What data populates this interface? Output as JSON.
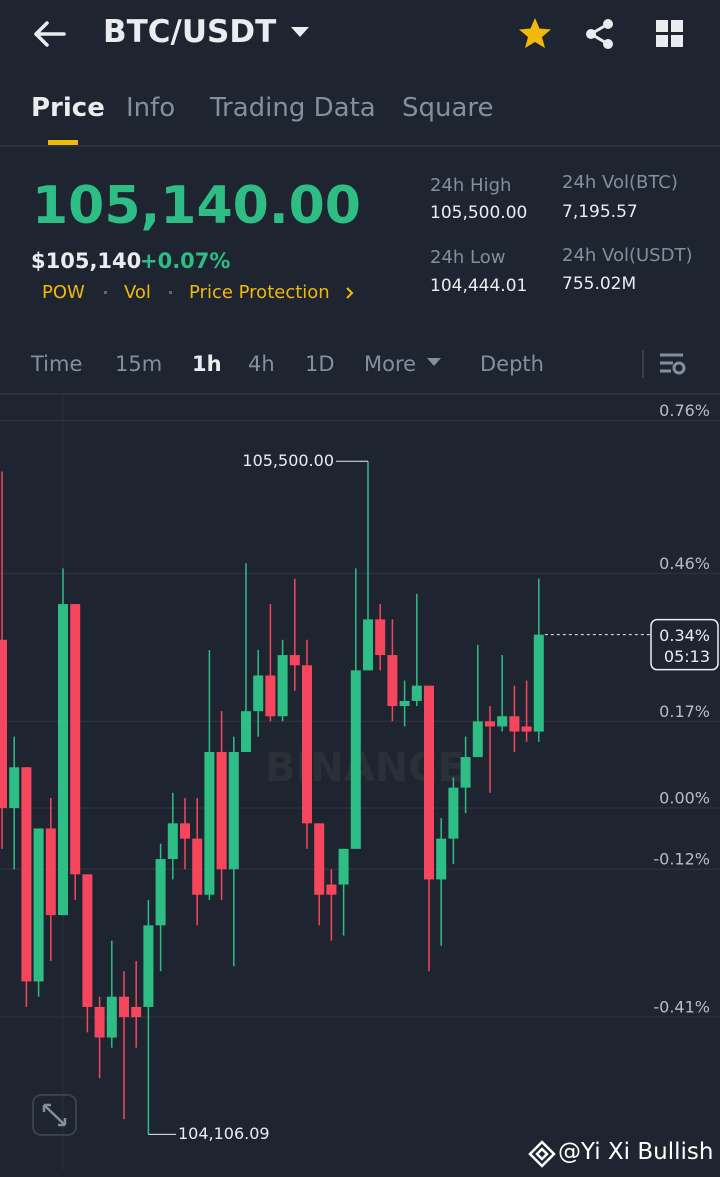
{
  "header": {
    "title": "BTC/USDT"
  },
  "tabs": [
    "Price",
    "Info",
    "Trading Data",
    "Square"
  ],
  "price": {
    "last": "105,140.00",
    "usd": "$105,140",
    "change": "+0.07%",
    "tags": [
      "POW",
      "Vol",
      "Price Protection"
    ]
  },
  "stats": [
    {
      "label": "24h High",
      "value": "105,500.00"
    },
    {
      "label": "24h Low",
      "value": "104,444.01"
    },
    {
      "label": "24h Vol(BTC)",
      "value": "7,195.57"
    },
    {
      "label": "24h Vol(USDT)",
      "value": "755.02M"
    }
  ],
  "intervals": [
    "Time",
    "15m",
    "1h",
    "4h",
    "1D",
    "More",
    "Depth"
  ],
  "watermark": "@Yi Xi Bullish",
  "logo": "BINANCE",
  "chart_data": {
    "type": "candlestick",
    "up_color": "#2ebd85",
    "down_color": "#f6465d",
    "ylim": [
      -0.7,
      0.81
    ],
    "yticks": [
      {
        "value": 0.76,
        "label": "0.76%"
      },
      {
        "value": 0.46,
        "label": "0.46%"
      },
      {
        "value": 0.17,
        "label": "0.17%"
      },
      {
        "value": 0,
        "label": "0.00%"
      },
      {
        "value": -0.12,
        "label": "-0.12%"
      },
      {
        "value": -0.41,
        "label": "-0.41%"
      }
    ],
    "grid": true,
    "open": [
      0.33,
      0,
      0.08,
      -0.34,
      -0.04,
      -0.21,
      0.4,
      -0.13,
      -0.39,
      -0.45,
      -0.37,
      -0.39,
      -0.39,
      -0.23,
      -0.1,
      -0.03,
      -0.06,
      -0.17,
      0.11,
      -0.12,
      0.11,
      0.19,
      0.26,
      0.18,
      0.3,
      0.28,
      -0.03,
      -0.15,
      -0.15,
      -0.08,
      0.27,
      0.37,
      0.3,
      0.2,
      0.21,
      0.24,
      -0.14,
      -0.06,
      0.04,
      0.1,
      0.17,
      0.16,
      0.18,
      0.16,
      0.15
    ],
    "high": [
      0.66,
      0.14,
      0.08,
      -0.04,
      0.02,
      0.47,
      0.4,
      -0.13,
      -0.37,
      -0.26,
      -0.32,
      -0.3,
      -0.18,
      -0.07,
      0.03,
      0.02,
      0.02,
      0.31,
      0.19,
      0.14,
      0.48,
      0.31,
      0.4,
      0.33,
      0.45,
      0.33,
      -0.03,
      -0.12,
      -0.08,
      0.47,
      0.68,
      0.4,
      0.37,
      0.25,
      0.42,
      0.24,
      -0.02,
      0.06,
      0.14,
      0.32,
      0.2,
      0.3,
      0.24,
      0.25,
      0.45
    ],
    "low": [
      -0.08,
      -0.12,
      -0.39,
      -0.37,
      -0.3,
      -0.21,
      -0.18,
      -0.44,
      -0.53,
      -0.47,
      -0.61,
      -0.47,
      -0.64,
      -0.32,
      -0.14,
      -0.12,
      -0.23,
      -0.18,
      -0.18,
      -0.31,
      0.11,
      0.14,
      0.17,
      0.17,
      0.23,
      -0.08,
      -0.23,
      -0.26,
      -0.25,
      -0.08,
      0.27,
      0.27,
      0.17,
      0.16,
      0.2,
      -0.32,
      -0.27,
      -0.11,
      -0.01,
      0.1,
      0.03,
      0.15,
      0.11,
      0.13,
      0.13
    ],
    "close": [
      0,
      0.08,
      -0.34,
      -0.04,
      -0.21,
      0.4,
      -0.13,
      -0.39,
      -0.45,
      -0.37,
      -0.41,
      -0.41,
      -0.23,
      -0.1,
      -0.03,
      -0.06,
      -0.17,
      0.11,
      -0.12,
      0.11,
      0.19,
      0.26,
      0.18,
      0.3,
      0.28,
      -0.03,
      -0.17,
      -0.17,
      -0.08,
      0.27,
      0.37,
      0.3,
      0.2,
      0.21,
      0.24,
      -0.14,
      -0.06,
      0.04,
      0.1,
      0.17,
      0.16,
      0.18,
      0.15,
      0.15,
      0.34
    ],
    "high_label": {
      "value": 0.68,
      "label": "105,500.00"
    },
    "low_label": {
      "value": -0.64,
      "label": "104,106.09"
    },
    "current": {
      "value": 0.34,
      "label": "0.34%",
      "countdown": "05:13"
    }
  }
}
